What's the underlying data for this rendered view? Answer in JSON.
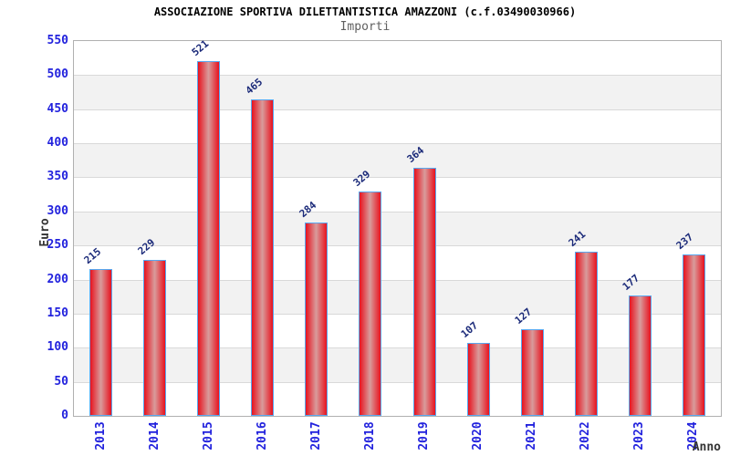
{
  "chart_data": {
    "type": "bar",
    "title": "ASSOCIAZIONE SPORTIVA DILETTANTISTICA AMAZZONI (c.f.03490030966)",
    "subtitle": "Importi",
    "xlabel": "Anno",
    "ylabel": "Euro",
    "categories": [
      "2013",
      "2014",
      "2015",
      "2016",
      "2017",
      "2018",
      "2019",
      "2020",
      "2021",
      "2022",
      "2023",
      "2024"
    ],
    "values": [
      215,
      229,
      521,
      465,
      284,
      329,
      364,
      107,
      127,
      241,
      177,
      237
    ],
    "ylim": [
      0,
      550
    ],
    "ytick_step": 50,
    "yticks": [
      0,
      50,
      100,
      150,
      200,
      250,
      300,
      350,
      400,
      450,
      500,
      550
    ],
    "grid": true,
    "legend": false,
    "value_labels_shown": true,
    "colors": {
      "title": "#000000",
      "subtitle": "#5f5f5f",
      "tick_label": "#2222dd",
      "value_label": "#1c2b7a",
      "axis_title": "#333333",
      "grid_line": "#d9d9d9",
      "band_alt": "#f2f2f2",
      "plot_border": "#b0b0b0",
      "bar_edge": "#e8121e",
      "bar_center": "#d89c9c",
      "bar_border": "#58a7ef"
    }
  }
}
